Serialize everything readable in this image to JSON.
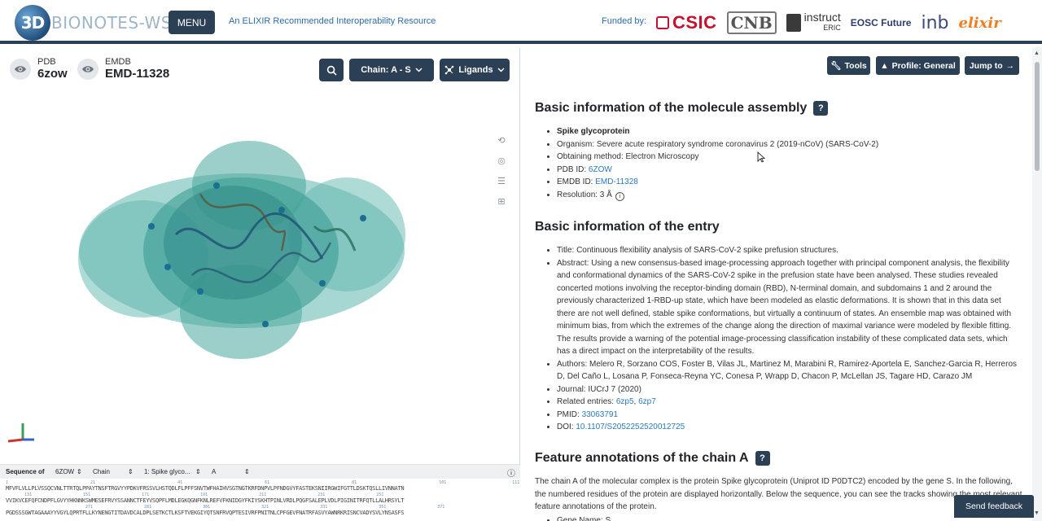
{
  "header": {
    "logo_3d": "3D",
    "logo_text": "BIONOTES-WS",
    "menu_label": "MENU",
    "elixir_text": "An ELIXIR Recommended Interoperability Resource",
    "funded_label": "Funded by:",
    "funders": [
      "CSIC",
      "CNB",
      "instruct",
      "ERIC",
      "EOSC Future",
      "inb",
      "elixir"
    ]
  },
  "left": {
    "pdb_label": "PDB",
    "pdb_value": "6zow",
    "emdb_label": "EMDB",
    "emdb_value": "EMD-11328",
    "chain_button": "Chain: A - S",
    "ligands_button": "Ligands",
    "sequence_bar": {
      "label": "Sequence of",
      "pdb_select": "6ZOW",
      "chain_select": "Chain",
      "entity_select": "1: Spike glyco...",
      "chain_value": "A"
    },
    "sequence_lines": [
      "MFVFLVLLPLVSSQCVNLTTRTQLPPAYTNSFTRGVYYPDKVFRSSVLHSTQDLFLPFFSNVTWFHAIHVSGTNGTKRFDNPVLPFNDGVYFASTEKSNIIRGWIFGTTLDSKTQSLLIVNNATN",
      "VVIKVCEFQFCNDPFLGVYYHKNNKSWMESEFRVYSSANNCTFEYVSQPFLMDLEGKQGNFKNLREFVFKNIDGYFKIYSKHTPINLVRDLPQGFSALEPLVDLPIGINITRFQTLLALHRSYLT",
      "PGDSSSGWTAGAAAYYVGYLQPRTFLLKYNENGTITDAVDCALDPLSETKCTLKSFTVEKGIYQTSNFRVQPTESIVRFPNITNLCPFGEVFNATRFASVYAWNRKRISNCVADYSVLYNSASFS"
    ],
    "sequence_numbers_1": [
      "1",
      "21",
      "41",
      "61",
      "81",
      "101",
      "111",
      "121"
    ],
    "sequence_numbers_2": [
      "131",
      "151",
      "171",
      "191",
      "211",
      "231",
      "251"
    ],
    "sequence_numbers_3": [
      "271",
      "281",
      "301",
      "321",
      "331",
      "351",
      "371"
    ]
  },
  "right": {
    "tools_button": "Tools",
    "profile_button": "Profile: General",
    "jump_button": "Jump to",
    "section1_title": "Basic information of the molecule assembly",
    "assembly": {
      "name": "Spike glycoprotein",
      "organism": "Organism: Severe acute respiratory syndrome coronavirus 2 (2019-nCoV) (SARS-CoV-2)",
      "method": "Obtaining method: Electron Microscopy",
      "pdb_prefix": "PDB ID: ",
      "pdb_id": "6ZOW",
      "emdb_prefix": "EMDB ID: ",
      "emdb_id": "EMD-11328",
      "resolution": "Resolution: 3 Å"
    },
    "section2_title": "Basic information of the entry",
    "entry": {
      "title": "Title: Continuous flexibility analysis of SARS-CoV-2 spike prefusion structures.",
      "abstract": "Abstract: Using a new consensus-based image-processing approach together with principal component analysis, the flexibility and conformational dynamics of the SARS-CoV-2 spike in the prefusion state have been analysed. These studies revealed concerted motions involving the receptor-binding domain (RBD), N-terminal domain, and subdomains 1 and 2 around the previously characterized 1-RBD-up state, which have been modeled as elastic deformations. It is shown that in this data set there are not well defined, stable spike conformations, but virtually a continuum of states. An ensemble map was obtained with minimum bias, from which the extremes of the change along the direction of maximal variance were modeled by flexible fitting. The results provide a warning of the potential image-processing classification instability of these complicated data sets, which has a direct impact on the interpretability of the results.",
      "authors": "Authors: Melero R, Sorzano COS, Foster B, Vilas JL, Martinez M, Marabini R, Ramirez-Aportela E, Sanchez-Garcia R, Herreros D, Del Caño L, Losana P, Fonseca-Reyna YC, Conesa P, Wrapp D, Chacon P, McLellan JS, Tagare HD, Carazo JM",
      "journal": "Journal: IUCrJ 7 (2020)",
      "related_prefix": "Related entries: ",
      "related_1": "6zp5",
      "related_sep": ", ",
      "related_2": "6zp7",
      "pmid_prefix": "PMID: ",
      "pmid": "33063791",
      "doi_prefix": "DOI: ",
      "doi": "10.1107/S2052252520012725"
    },
    "section3_title": "Feature annotations of the chain A",
    "feature_para": "The chain A of the molecular complex is the protein Spike glycoprotein (Uniprot ID P0DTC2) encoded by the gene S. In the following, the numbered residues of the protein are displayed horizontally. Below the sequence, you can see the tracks showing the most relevant feature annotations of the protein.",
    "gene_name": "Gene Name: S"
  },
  "feedback_label": "Send feedback",
  "colors": {
    "brand_dark": "#2b3f55",
    "link": "#2b7bb9",
    "molecule_teal": "#3fa59b"
  }
}
